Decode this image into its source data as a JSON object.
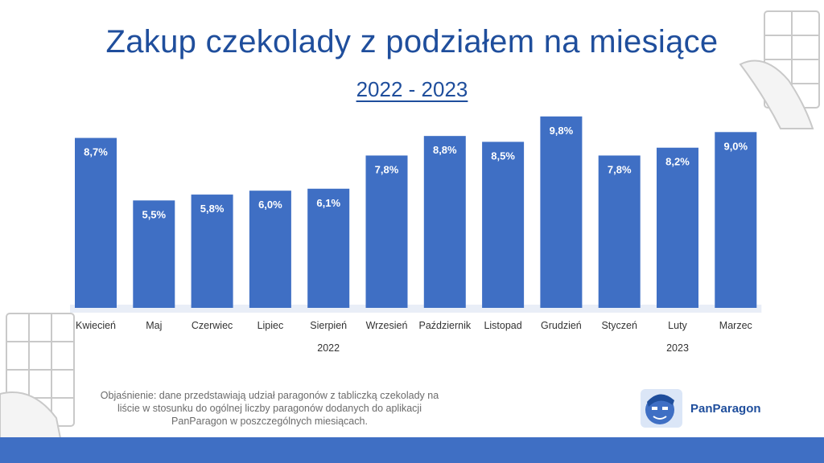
{
  "title": "Zakup czekolady z podziałem na miesiące",
  "subtitle": "2022 - 2023",
  "note": "Objaśnienie: dane przedstawiają udział paragonów z tabliczką czekolady na liście w stosunku do ogólnej liczby paragonów dodanych do aplikacji PanParagon w poszczególnych miesiącach.",
  "logo_text": "PanParagon",
  "colors": {
    "bar": "#3f6fc4",
    "bar_dark": "#2f59a8",
    "title": "#1f4e9c",
    "footer": "#3f6fc4"
  },
  "chart_data": {
    "type": "bar",
    "categories": [
      "Kwiecień",
      "Maj",
      "Czerwiec",
      "Lipiec",
      "Sierpień",
      "Wrzesień",
      "Październik",
      "Listopad",
      "Grudzień",
      "Styczeń",
      "Luty",
      "Marzec"
    ],
    "values": [
      8.7,
      5.5,
      5.8,
      6.0,
      6.1,
      7.8,
      8.8,
      8.5,
      9.8,
      7.8,
      8.2,
      9.0
    ],
    "labels": [
      "8,7%",
      "5,5%",
      "5,8%",
      "6,0%",
      "6,1%",
      "7,8%",
      "8,8%",
      "8,5%",
      "9,8%",
      "7,8%",
      "8,2%",
      "9,0%"
    ],
    "groups": [
      {
        "label": "2022",
        "from": 0,
        "to": 8
      },
      {
        "label": "2023",
        "from": 9,
        "to": 11
      }
    ],
    "ylim": [
      0,
      10
    ],
    "grid": false,
    "legend": "none"
  }
}
